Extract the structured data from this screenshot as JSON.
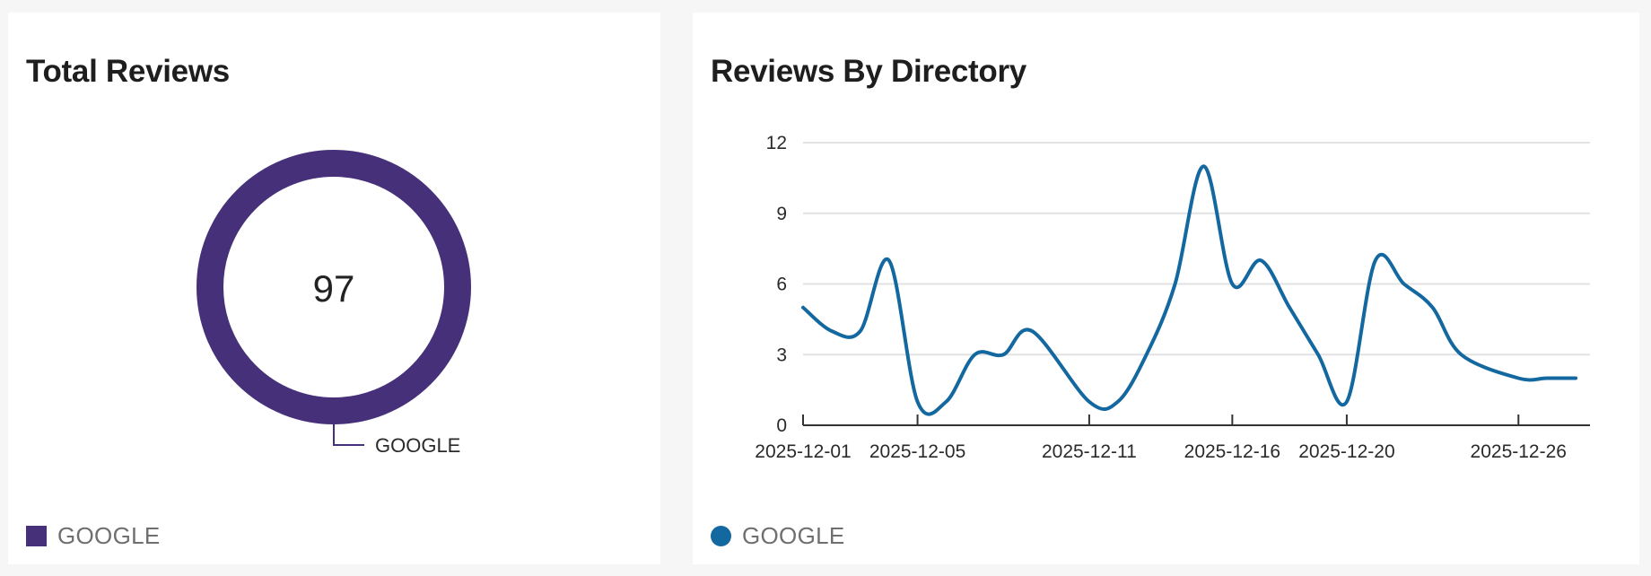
{
  "total_reviews": {
    "title": "Total Reviews",
    "total": "97",
    "slice_label": "GOOGLE",
    "legend": {
      "label": "GOOGLE",
      "color": "#46307a"
    }
  },
  "reviews_by_directory": {
    "title": "Reviews By Directory",
    "legend": {
      "label": "GOOGLE",
      "color": "#1468a0"
    }
  },
  "chart_data": [
    {
      "type": "pie",
      "title": "Total Reviews",
      "style": "donut",
      "center_label": "97",
      "slices": [
        {
          "label": "GOOGLE",
          "value": 97,
          "color": "#46307a"
        }
      ],
      "legend_position": "bottom-left"
    },
    {
      "type": "line",
      "title": "Reviews By Directory",
      "x": [
        "2025-12-01",
        "2025-12-02",
        "2025-12-03",
        "2025-12-04",
        "2025-12-05",
        "2025-12-06",
        "2025-12-07",
        "2025-12-08",
        "2025-12-09",
        "2025-12-11",
        "2025-12-12",
        "2025-12-13",
        "2025-12-14",
        "2025-12-15",
        "2025-12-16",
        "2025-12-17",
        "2025-12-18",
        "2025-12-19",
        "2025-12-20",
        "2025-12-21",
        "2025-12-22",
        "2025-12-23",
        "2025-12-24",
        "2025-12-26",
        "2025-12-27",
        "2025-12-28"
      ],
      "x_tick_labels": [
        "2025-12-01",
        "2025-12-05",
        "2025-12-11",
        "2025-12-16",
        "2025-12-20",
        "2025-12-26"
      ],
      "series": [
        {
          "name": "GOOGLE",
          "color": "#1468a0",
          "values": [
            5,
            4,
            4,
            7,
            1,
            1,
            3,
            3,
            4,
            1,
            1,
            3,
            6,
            11,
            6,
            7,
            5,
            3,
            1,
            7,
            6,
            5,
            3,
            2,
            2,
            2
          ]
        }
      ],
      "ylim": [
        0,
        12
      ],
      "y_ticks": [
        0,
        3,
        6,
        9,
        12
      ],
      "grid": true,
      "legend_position": "bottom-left"
    }
  ]
}
